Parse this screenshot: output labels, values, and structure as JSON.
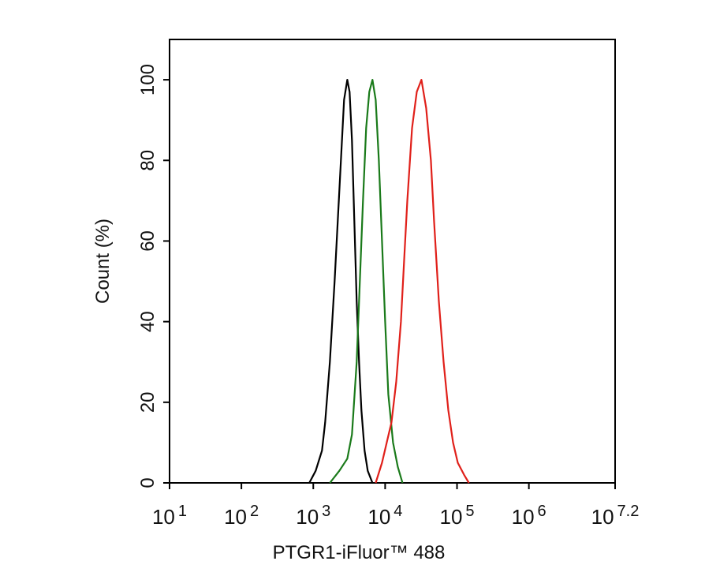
{
  "chart_data": {
    "type": "line",
    "xlabel": "PTGR1-iFluor™ 488",
    "ylabel": "Count  (%)",
    "xscale": "log",
    "xlim": [
      10,
      15848932
    ],
    "ylim": [
      0,
      110
    ],
    "xticks": [
      {
        "value": 10,
        "label": "10",
        "exponent": "1"
      },
      {
        "value": 100,
        "label": "10",
        "exponent": "2"
      },
      {
        "value": 1000,
        "label": "10",
        "exponent": "3"
      },
      {
        "value": 10000,
        "label": "10",
        "exponent": "4"
      },
      {
        "value": 100000,
        "label": "10",
        "exponent": "5"
      },
      {
        "value": 1000000,
        "label": "10",
        "exponent": "6"
      },
      {
        "value": 15848932,
        "label": "10",
        "exponent": "7.2"
      }
    ],
    "yticks": [
      0,
      20,
      40,
      60,
      80,
      100
    ],
    "series": [
      {
        "color": "#000000",
        "x": [
          881,
          1079,
          1321,
          1462,
          1702,
          1982,
          2193,
          2427,
          2685,
          2972,
          3199,
          3451,
          3724,
          4018,
          4335,
          4677,
          5176,
          5728,
          6668
        ],
        "values": [
          0,
          3,
          8,
          15,
          30,
          50,
          65,
          80,
          95,
          100,
          97,
          85,
          65,
          45,
          30,
          18,
          8,
          3,
          0
        ]
      },
      {
        "color": "#1a7a1a",
        "x": [
          1702,
          2307,
          2972,
          3451,
          4018,
          4446,
          4920,
          5445,
          6026,
          6668,
          7379,
          8166,
          9036,
          10000,
          11066,
          12883,
          14997,
          17458
        ],
        "values": [
          0,
          3,
          6,
          12,
          30,
          50,
          70,
          88,
          97,
          100,
          95,
          80,
          60,
          40,
          22,
          10,
          4,
          0
        ]
      },
      {
        "color": "#e0201a",
        "x": [
          7379,
          9036,
          10520,
          12246,
          14256,
          16596,
          18365,
          20324,
          23659,
          27542,
          31989,
          37239,
          43351,
          47973,
          55847,
          65013,
          75683,
          88105,
          102565,
          125603,
          146218
        ],
        "values": [
          0,
          5,
          10,
          15,
          25,
          40,
          55,
          70,
          88,
          97,
          100,
          93,
          80,
          65,
          45,
          30,
          18,
          10,
          5,
          2,
          0
        ]
      }
    ]
  }
}
